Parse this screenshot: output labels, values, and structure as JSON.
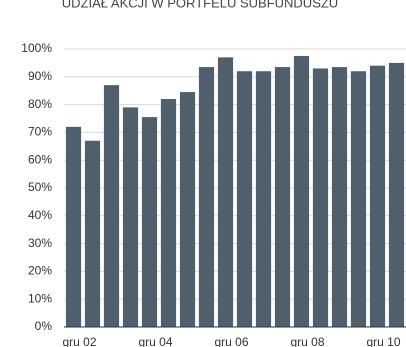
{
  "chart_data": {
    "type": "bar",
    "title": "UDZIAŁ AKCJI W PORTFELU SUBFUNDUSZU",
    "categories": [
      "gru 02",
      null,
      null,
      null,
      "gru 04",
      null,
      null,
      null,
      "gru 06",
      null,
      null,
      null,
      "gru 08",
      null,
      null,
      null,
      "gru 10",
      null
    ],
    "values": [
      72,
      67,
      87,
      79,
      75.5,
      82,
      84.5,
      93.5,
      97,
      92,
      92,
      93.5,
      97.5,
      93,
      93.5,
      92,
      94,
      95
    ],
    "color": "#4f5f6b",
    "ylim": [
      0,
      100
    ],
    "yticks": [
      {
        "value": 0,
        "label": "0%"
      },
      {
        "value": 10,
        "label": "10%"
      },
      {
        "value": 20,
        "label": "20%"
      },
      {
        "value": 30,
        "label": "30%"
      },
      {
        "value": 40,
        "label": "40%"
      },
      {
        "value": 50,
        "label": "50%"
      },
      {
        "value": 60,
        "label": "60%"
      },
      {
        "value": 70,
        "label": "70%"
      },
      {
        "value": 80,
        "label": "80%"
      },
      {
        "value": 90,
        "label": "90%"
      },
      {
        "value": 100,
        "label": "100%"
      }
    ],
    "grid": true
  }
}
